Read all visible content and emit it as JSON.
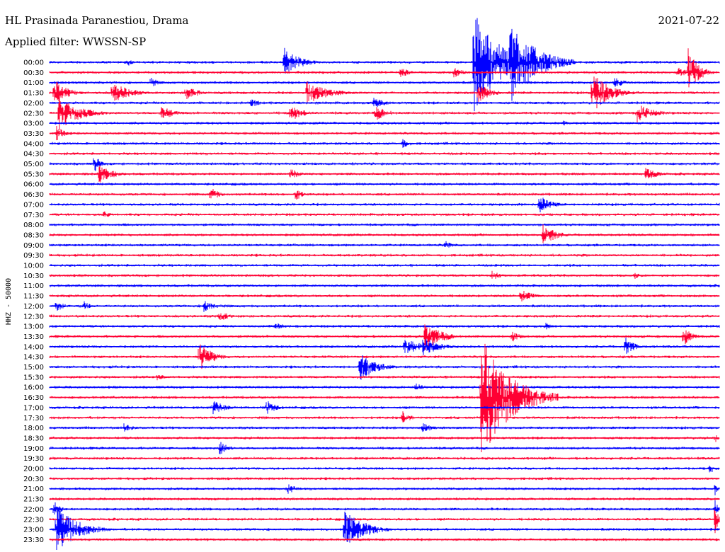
{
  "header": {
    "station": "HL Prasinada Paranestiou, Drama",
    "date": "2021-07-22",
    "filter": "Applied filter: WWSSN-SP"
  },
  "axis": {
    "ylabel": "HHZ - 50000"
  },
  "colors": {
    "blue": "#0000ff",
    "red": "#ff0033"
  },
  "chart_data": {
    "type": "line",
    "title": "",
    "ylabel": "HHZ - 50000",
    "rows": [
      "00:00",
      "00:30",
      "01:00",
      "01:30",
      "02:00",
      "02:30",
      "03:00",
      "03:30",
      "04:00",
      "04:30",
      "05:00",
      "05:30",
      "06:00",
      "06:30",
      "07:00",
      "07:30",
      "08:00",
      "08:30",
      "09:00",
      "09:30",
      "10:00",
      "10:30",
      "11:00",
      "11:30",
      "12:00",
      "12:30",
      "13:00",
      "13:30",
      "14:00",
      "14:30",
      "15:00",
      "15:30",
      "16:00",
      "16:30",
      "17:00",
      "17:30",
      "18:00",
      "18:30",
      "19:00",
      "19:30",
      "20:00",
      "20:30",
      "21:00",
      "21:30",
      "22:00",
      "22:30",
      "23:00",
      "23:30"
    ],
    "minutes_per_row": 30,
    "row_colors": [
      "blue",
      "red"
    ],
    "events": [
      {
        "row": 0,
        "min": 3.5,
        "amp": 0.4,
        "dur": 0.8
      },
      {
        "row": 0,
        "min": 10.5,
        "amp": 1.6,
        "dur": 1.8
      },
      {
        "row": 0,
        "min": 19.0,
        "amp": 5.5,
        "dur": 3.0
      },
      {
        "row": 0,
        "min": 20.6,
        "amp": 4.5,
        "dur": 3.0
      },
      {
        "row": 1,
        "min": 15.7,
        "amp": 0.6,
        "dur": 1.2
      },
      {
        "row": 1,
        "min": 18.1,
        "amp": 0.6,
        "dur": 1.2
      },
      {
        "row": 1,
        "min": 28.1,
        "amp": 0.6,
        "dur": 1.2
      },
      {
        "row": 1,
        "min": 28.6,
        "amp": 2.5,
        "dur": 1.2
      },
      {
        "row": 2,
        "min": 4.5,
        "amp": 0.6,
        "dur": 1.0
      },
      {
        "row": 2,
        "min": 25.3,
        "amp": 0.6,
        "dur": 1.2
      },
      {
        "row": 3,
        "min": 0.2,
        "amp": 1.4,
        "dur": 1.5
      },
      {
        "row": 3,
        "min": 2.8,
        "amp": 1.2,
        "dur": 2.0
      },
      {
        "row": 3,
        "min": 6.1,
        "amp": 0.8,
        "dur": 1.5
      },
      {
        "row": 3,
        "min": 11.5,
        "amp": 1.3,
        "dur": 2.5
      },
      {
        "row": 3,
        "min": 19.2,
        "amp": 1.0,
        "dur": 1.5
      },
      {
        "row": 3,
        "min": 24.3,
        "amp": 2.2,
        "dur": 2.0
      },
      {
        "row": 4,
        "min": 9.0,
        "amp": 0.5,
        "dur": 1.2
      },
      {
        "row": 4,
        "min": 14.5,
        "amp": 0.6,
        "dur": 1.5
      },
      {
        "row": 5,
        "min": 0.4,
        "amp": 1.8,
        "dur": 2.5
      },
      {
        "row": 5,
        "min": 5.0,
        "amp": 0.8,
        "dur": 1.5
      },
      {
        "row": 5,
        "min": 10.8,
        "amp": 0.9,
        "dur": 1.5
      },
      {
        "row": 5,
        "min": 14.6,
        "amp": 0.8,
        "dur": 1.5
      },
      {
        "row": 5,
        "min": 26.3,
        "amp": 1.0,
        "dur": 2.0
      },
      {
        "row": 6,
        "min": 23.0,
        "amp": 0.3,
        "dur": 0.6
      },
      {
        "row": 7,
        "min": 0.3,
        "amp": 0.8,
        "dur": 1.0
      },
      {
        "row": 8,
        "min": 15.8,
        "amp": 0.5,
        "dur": 1.0
      },
      {
        "row": 10,
        "min": 2.0,
        "amp": 1.2,
        "dur": 0.6
      },
      {
        "row": 11,
        "min": 2.2,
        "amp": 1.0,
        "dur": 1.8
      },
      {
        "row": 11,
        "min": 10.8,
        "amp": 0.7,
        "dur": 1.0
      },
      {
        "row": 11,
        "min": 26.7,
        "amp": 0.7,
        "dur": 1.5
      },
      {
        "row": 13,
        "min": 7.2,
        "amp": 0.8,
        "dur": 1.0
      },
      {
        "row": 13,
        "min": 11.0,
        "amp": 0.7,
        "dur": 1.0
      },
      {
        "row": 14,
        "min": 21.9,
        "amp": 1.0,
        "dur": 1.5
      },
      {
        "row": 15,
        "min": 2.4,
        "amp": 0.5,
        "dur": 0.8
      },
      {
        "row": 17,
        "min": 22.1,
        "amp": 1.2,
        "dur": 1.5
      },
      {
        "row": 18,
        "min": 17.7,
        "amp": 0.5,
        "dur": 1.0
      },
      {
        "row": 21,
        "min": 19.8,
        "amp": 0.5,
        "dur": 1.2
      },
      {
        "row": 21,
        "min": 26.2,
        "amp": 0.5,
        "dur": 0.5
      },
      {
        "row": 23,
        "min": 21.1,
        "amp": 0.7,
        "dur": 1.5
      },
      {
        "row": 24,
        "min": 0.3,
        "amp": 0.6,
        "dur": 1.0
      },
      {
        "row": 24,
        "min": 1.5,
        "amp": 0.6,
        "dur": 0.8
      },
      {
        "row": 24,
        "min": 6.9,
        "amp": 0.7,
        "dur": 1.5
      },
      {
        "row": 25,
        "min": 7.6,
        "amp": 0.6,
        "dur": 1.2
      },
      {
        "row": 26,
        "min": 10.1,
        "amp": 0.5,
        "dur": 1.0
      },
      {
        "row": 26,
        "min": 22.2,
        "amp": 0.4,
        "dur": 0.8
      },
      {
        "row": 27,
        "min": 16.8,
        "amp": 1.5,
        "dur": 2.0
      },
      {
        "row": 27,
        "min": 20.7,
        "amp": 0.6,
        "dur": 1.0
      },
      {
        "row": 27,
        "min": 28.4,
        "amp": 1.0,
        "dur": 1.0
      },
      {
        "row": 28,
        "min": 15.9,
        "amp": 0.8,
        "dur": 2.5
      },
      {
        "row": 28,
        "min": 16.7,
        "amp": 1.0,
        "dur": 2.0
      },
      {
        "row": 28,
        "min": 25.8,
        "amp": 1.0,
        "dur": 1.0
      },
      {
        "row": 29,
        "min": 6.7,
        "amp": 1.6,
        "dur": 1.5
      },
      {
        "row": 30,
        "min": 13.9,
        "amp": 1.4,
        "dur": 2.0
      },
      {
        "row": 31,
        "min": 4.8,
        "amp": 0.4,
        "dur": 1.0
      },
      {
        "row": 32,
        "min": 16.4,
        "amp": 0.5,
        "dur": 1.0
      },
      {
        "row": 33,
        "min": 19.3,
        "amp": 6.5,
        "dur": 3.5
      },
      {
        "row": 34,
        "min": 7.3,
        "amp": 0.8,
        "dur": 1.5
      },
      {
        "row": 34,
        "min": 9.7,
        "amp": 0.8,
        "dur": 1.2
      },
      {
        "row": 35,
        "min": 15.8,
        "amp": 0.7,
        "dur": 1.0
      },
      {
        "row": 36,
        "min": 3.3,
        "amp": 0.5,
        "dur": 1.2
      },
      {
        "row": 36,
        "min": 16.7,
        "amp": 0.6,
        "dur": 1.2
      },
      {
        "row": 37,
        "min": 29.8,
        "amp": 0.7,
        "dur": 0.3
      },
      {
        "row": 38,
        "min": 7.6,
        "amp": 0.8,
        "dur": 1.0
      },
      {
        "row": 40,
        "min": 29.6,
        "amp": 0.8,
        "dur": 0.3
      },
      {
        "row": 42,
        "min": 10.6,
        "amp": 0.7,
        "dur": 1.0
      },
      {
        "row": 42,
        "min": 29.8,
        "amp": 0.8,
        "dur": 0.3
      },
      {
        "row": 44,
        "min": 0.2,
        "amp": 1.2,
        "dur": 0.6
      },
      {
        "row": 44,
        "min": 29.8,
        "amp": 1.2,
        "dur": 0.3
      },
      {
        "row": 45,
        "min": 29.8,
        "amp": 2.2,
        "dur": 0.3
      },
      {
        "row": 46,
        "min": 0.3,
        "amp": 2.5,
        "dur": 2.5
      },
      {
        "row": 46,
        "min": 13.2,
        "amp": 2.0,
        "dur": 2.5
      }
    ]
  }
}
